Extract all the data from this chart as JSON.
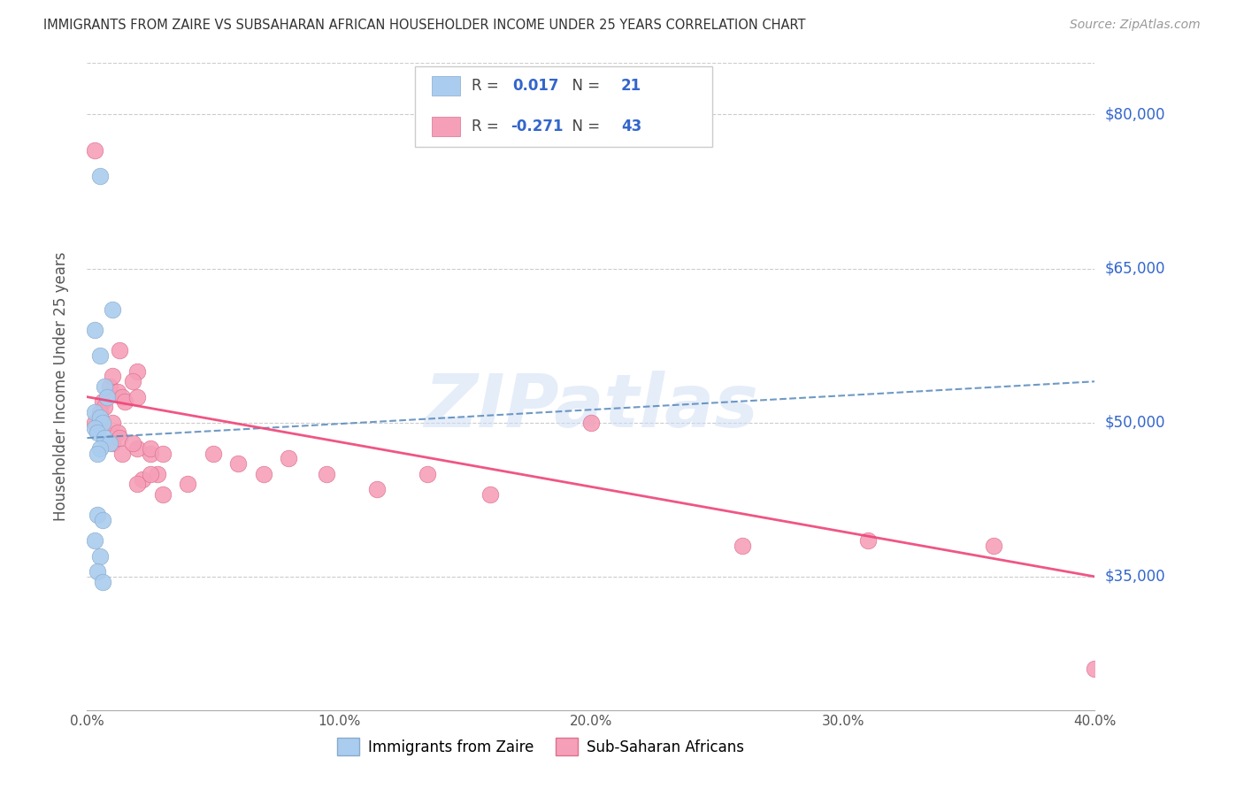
{
  "title": "IMMIGRANTS FROM ZAIRE VS SUBSAHARAN AFRICAN HOUSEHOLDER INCOME UNDER 25 YEARS CORRELATION CHART",
  "source": "Source: ZipAtlas.com",
  "ylabel": "Householder Income Under 25 years",
  "xlim": [
    0.0,
    0.4
  ],
  "ylim": [
    22000,
    85000
  ],
  "xtick_labels": [
    "0.0%",
    "10.0%",
    "20.0%",
    "30.0%",
    "40.0%"
  ],
  "xtick_vals": [
    0.0,
    0.1,
    0.2,
    0.3,
    0.4
  ],
  "ytick_labels": [
    "$35,000",
    "$50,000",
    "$65,000",
    "$80,000"
  ],
  "ytick_vals": [
    35000,
    50000,
    65000,
    80000
  ],
  "grid_color": "#cccccc",
  "background_color": "#ffffff",
  "watermark": "ZIPatlas",
  "blue_color": "#aaccee",
  "blue_edge_color": "#88aacc",
  "pink_color": "#f5a0b8",
  "pink_edge_color": "#dd7090",
  "blue_line_color": "#5588bb",
  "pink_line_color": "#ee4477",
  "accent_color": "#3366cc",
  "R_blue": 0.017,
  "N_blue": 21,
  "R_pink": -0.271,
  "N_pink": 43,
  "blue_points_x": [
    0.005,
    0.01,
    0.003,
    0.005,
    0.007,
    0.008,
    0.003,
    0.005,
    0.006,
    0.003,
    0.004,
    0.007,
    0.009,
    0.005,
    0.004,
    0.004,
    0.006,
    0.003,
    0.005,
    0.004,
    0.006
  ],
  "blue_points_y": [
    74000,
    61000,
    59000,
    56500,
    53500,
    52500,
    51000,
    50500,
    50000,
    49500,
    49000,
    48500,
    48000,
    47500,
    47000,
    41000,
    40500,
    38500,
    37000,
    35500,
    34500
  ],
  "pink_points_x": [
    0.003,
    0.006,
    0.009,
    0.01,
    0.013,
    0.005,
    0.007,
    0.01,
    0.012,
    0.014,
    0.01,
    0.012,
    0.02,
    0.015,
    0.013,
    0.018,
    0.02,
    0.014,
    0.025,
    0.02,
    0.018,
    0.025,
    0.028,
    0.022,
    0.02,
    0.03,
    0.025,
    0.03,
    0.04,
    0.003,
    0.05,
    0.06,
    0.07,
    0.08,
    0.095,
    0.115,
    0.135,
    0.16,
    0.2,
    0.26,
    0.31,
    0.36,
    0.4
  ],
  "pink_points_y": [
    76500,
    52000,
    53500,
    54500,
    57000,
    51000,
    51500,
    50000,
    53000,
    52500,
    48000,
    49000,
    55000,
    52000,
    48500,
    54000,
    52500,
    47000,
    47000,
    47500,
    48000,
    47500,
    45000,
    44500,
    44000,
    47000,
    45000,
    43000,
    44000,
    50000,
    47000,
    46000,
    45000,
    46500,
    45000,
    43500,
    45000,
    43000,
    50000,
    38000,
    38500,
    38000,
    26000
  ],
  "blue_trend_x": [
    0.0,
    0.4
  ],
  "blue_trend_y": [
    48500,
    54000
  ],
  "pink_trend_x": [
    0.0,
    0.4
  ],
  "pink_trend_y": [
    52500,
    35000
  ]
}
